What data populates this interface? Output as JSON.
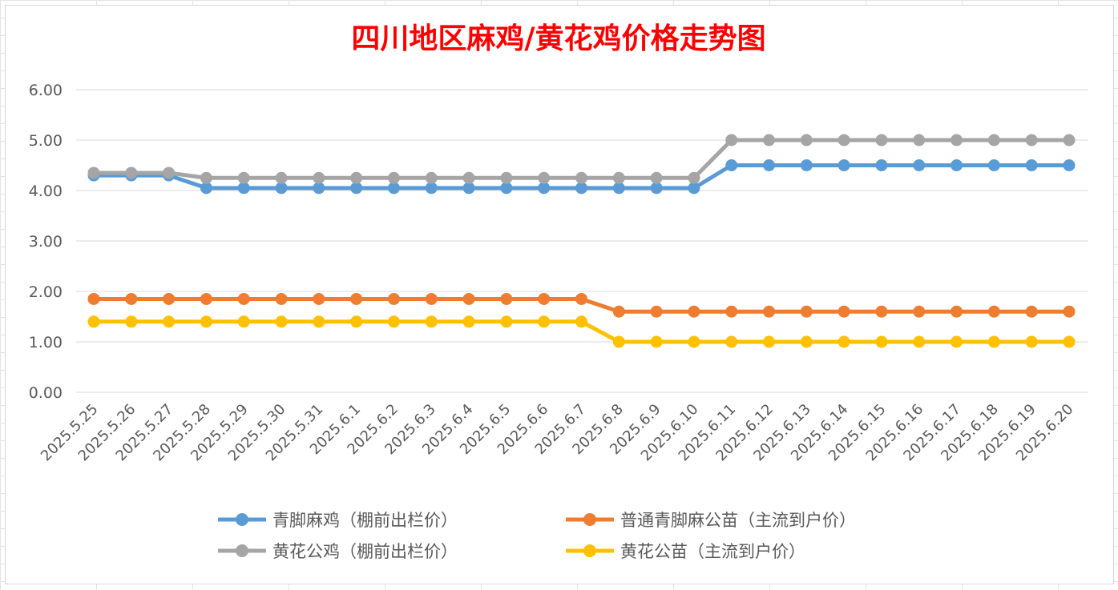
{
  "chart_data": {
    "type": "line",
    "title": "四川地区麻鸡/黄花鸡价格走势图",
    "xlabel": "",
    "ylabel": "",
    "ylim": [
      0,
      6
    ],
    "yticks": [
      "0.00",
      "1.00",
      "2.00",
      "3.00",
      "4.00",
      "5.00",
      "6.00"
    ],
    "grid": true,
    "legend_position": "bottom",
    "categories": [
      "2025.5.25",
      "2025.5.26",
      "2025.5.27",
      "2025.5.28",
      "2025.5.29",
      "2025.5.30",
      "2025.5.31",
      "2025.6.1",
      "2025.6.2",
      "2025.6.3",
      "2025.6.4",
      "2025.6.5",
      "2025.6.6",
      "2025.6.7",
      "2025.6.8",
      "2025.6.9",
      "2025.6.10",
      "2025.6.11",
      "2025.6.12",
      "2025.6.13",
      "2025.6.14",
      "2025.6.15",
      "2025.6.16",
      "2025.6.17",
      "2025.6.18",
      "2025.6.19",
      "2025.6.20"
    ],
    "series": [
      {
        "name": "青脚麻鸡（棚前出栏价）",
        "color": "#5b9bd5",
        "values": [
          4.3,
          4.3,
          4.3,
          4.05,
          4.05,
          4.05,
          4.05,
          4.05,
          4.05,
          4.05,
          4.05,
          4.05,
          4.05,
          4.05,
          4.05,
          4.05,
          4.05,
          4.5,
          4.5,
          4.5,
          4.5,
          4.5,
          4.5,
          4.5,
          4.5,
          4.5,
          4.5
        ]
      },
      {
        "name": "普通青脚麻公苗（主流到户价）",
        "color": "#ed7d31",
        "values": [
          1.85,
          1.85,
          1.85,
          1.85,
          1.85,
          1.85,
          1.85,
          1.85,
          1.85,
          1.85,
          1.85,
          1.85,
          1.85,
          1.85,
          1.6,
          1.6,
          1.6,
          1.6,
          1.6,
          1.6,
          1.6,
          1.6,
          1.6,
          1.6,
          1.6,
          1.6,
          1.6
        ]
      },
      {
        "name": "黄花公鸡（棚前出栏价）",
        "color": "#a5a5a5",
        "values": [
          4.35,
          4.35,
          4.35,
          4.25,
          4.25,
          4.25,
          4.25,
          4.25,
          4.25,
          4.25,
          4.25,
          4.25,
          4.25,
          4.25,
          4.25,
          4.25,
          4.25,
          5.0,
          5.0,
          5.0,
          5.0,
          5.0,
          5.0,
          5.0,
          5.0,
          5.0,
          5.0
        ]
      },
      {
        "name": "黄花公苗（主流到户价）",
        "color": "#ffc000",
        "values": [
          1.4,
          1.4,
          1.4,
          1.4,
          1.4,
          1.4,
          1.4,
          1.4,
          1.4,
          1.4,
          1.4,
          1.4,
          1.4,
          1.4,
          1.0,
          1.0,
          1.0,
          1.0,
          1.0,
          1.0,
          1.0,
          1.0,
          1.0,
          1.0,
          1.0,
          1.0,
          1.0
        ]
      }
    ]
  }
}
